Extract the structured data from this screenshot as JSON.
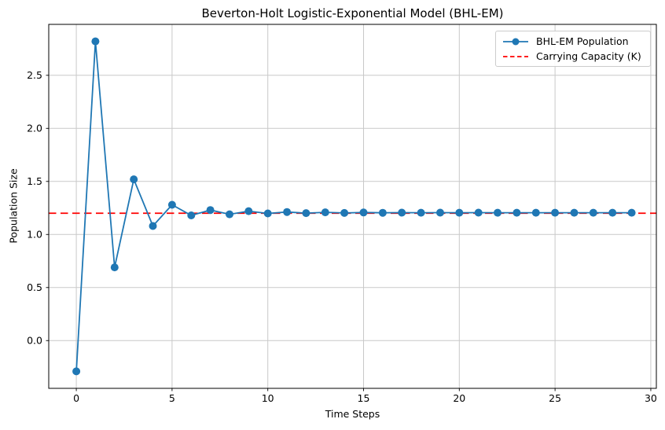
{
  "chart_data": {
    "type": "line",
    "title": "Beverton-Holt Logistic-Exponential Model (BHL-EM)",
    "xlabel": "Time Steps",
    "ylabel": "Population Size",
    "x": [
      0,
      1,
      2,
      3,
      4,
      5,
      6,
      7,
      8,
      9,
      10,
      11,
      12,
      13,
      14,
      15,
      16,
      17,
      18,
      19,
      20,
      21,
      22,
      23,
      24,
      25,
      26,
      27,
      28,
      29
    ],
    "series": [
      {
        "name": "BHL-EM Population",
        "color": "#1f77b4",
        "style": "solid",
        "marker": "circle",
        "values": [
          -0.29,
          2.82,
          0.69,
          1.52,
          1.08,
          1.28,
          1.18,
          1.23,
          1.19,
          1.22,
          1.198,
          1.212,
          1.201,
          1.209,
          1.203,
          1.207,
          1.204,
          1.206,
          1.205,
          1.206,
          1.205,
          1.206,
          1.205,
          1.205,
          1.205,
          1.205,
          1.205,
          1.205,
          1.205,
          1.205
        ]
      },
      {
        "name": "Carrying Capacity (K)",
        "color": "#ff0000",
        "style": "dashed",
        "value": 1.2
      }
    ],
    "xlim": [
      -1.44,
      30.29
    ],
    "ylim": [
      -0.45,
      2.98
    ],
    "xticks": [
      0,
      5,
      10,
      15,
      20,
      25,
      30
    ],
    "yticks": [
      0.0,
      0.5,
      1.0,
      1.5,
      2.0,
      2.5
    ],
    "grid": true,
    "grid_color": "#c9c9c9",
    "spine_color": "#000000",
    "legend_position": "upper right"
  }
}
